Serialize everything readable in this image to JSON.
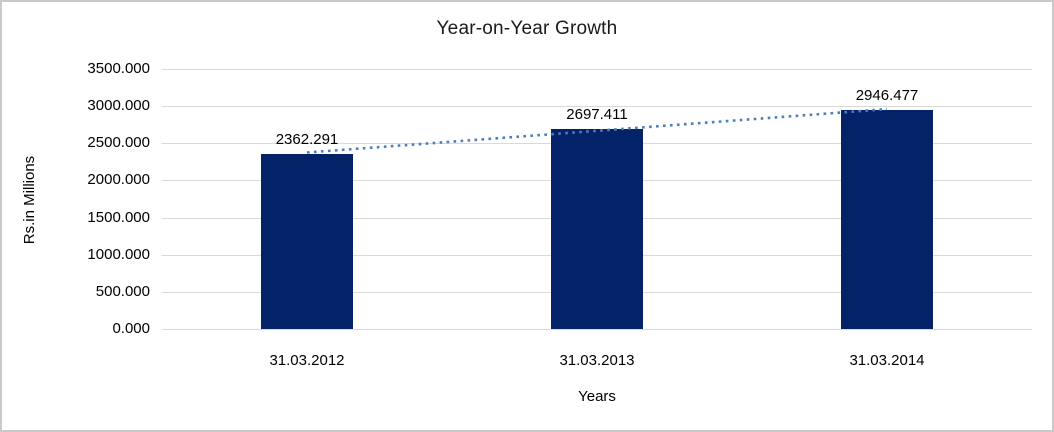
{
  "chart_data": {
    "type": "bar",
    "title": "Year-on-Year Growth",
    "xlabel": "Years",
    "ylabel": "Rs.in Millions",
    "categories": [
      "31.03.2012",
      "31.03.2013",
      "31.03.2014"
    ],
    "values": [
      2362.291,
      2697.411,
      2946.477
    ],
    "data_labels": [
      "2362.291",
      "2697.411",
      "2946.477"
    ],
    "ylim": [
      0,
      3500
    ],
    "ytick_step": 500,
    "ytick_labels": [
      "0.000",
      "500.000",
      "1000.000",
      "1500.000",
      "2000.000",
      "2500.000",
      "3000.000",
      "3500.000"
    ],
    "grid": "horizontal",
    "legend": "none",
    "trendline": {
      "type": "linear",
      "style": "dotted"
    }
  },
  "colors": {
    "bar": "#042268",
    "trendline": "#4a7ebb",
    "gridline": "#d9d9d9",
    "text": "#000000",
    "frame_border": "#c9c9c9"
  }
}
